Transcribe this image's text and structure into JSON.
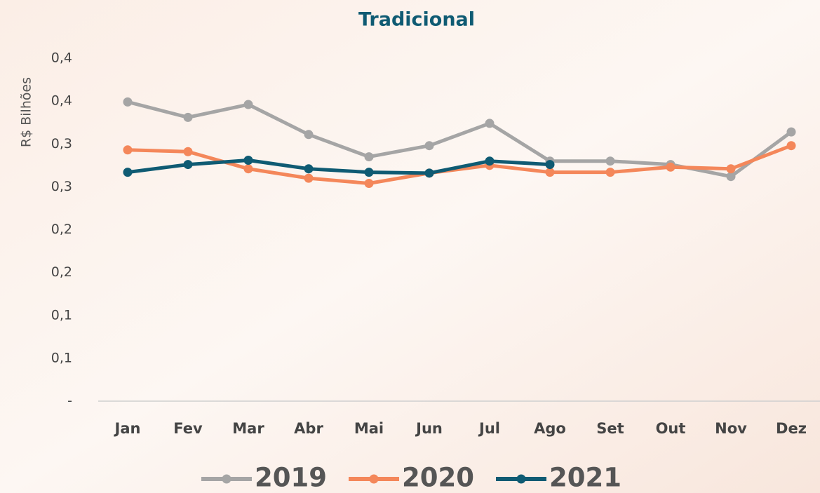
{
  "chart_data": {
    "type": "line",
    "title": "Tradicional",
    "y_label": "R$ Bilhões",
    "categories": [
      "Jan",
      "Fev",
      "Mar",
      "Abr",
      "Mai",
      "Jun",
      "Jul",
      "Ago",
      "Set",
      "Out",
      "Nov",
      "Dez"
    ],
    "series": [
      {
        "name": "2019",
        "color": "#a5a5a5",
        "values": [
          0.349,
          0.331,
          0.346,
          0.311,
          0.285,
          0.298,
          0.324,
          0.28,
          0.28,
          0.276,
          0.262,
          0.314
        ]
      },
      {
        "name": "2020",
        "color": "#f4875a",
        "values": [
          0.293,
          0.291,
          0.271,
          0.26,
          0.254,
          0.266,
          0.275,
          0.267,
          0.267,
          0.273,
          0.271,
          0.298
        ]
      },
      {
        "name": "2021",
        "color": "#0f5b73",
        "values": [
          0.267,
          0.276,
          0.281,
          0.271,
          0.267,
          0.266,
          0.28,
          0.276,
          null,
          null,
          null,
          null
        ]
      }
    ],
    "ylim": [
      0,
      0.4
    ],
    "yticks": [
      {
        "value": 0,
        "label": "-"
      },
      {
        "value": 0.05,
        "label": "0,1"
      },
      {
        "value": 0.1,
        "label": "0,1"
      },
      {
        "value": 0.15,
        "label": "0,2"
      },
      {
        "value": 0.2,
        "label": "0,2"
      },
      {
        "value": 0.25,
        "label": "0,3"
      },
      {
        "value": 0.3,
        "label": "0,3"
      },
      {
        "value": 0.35,
        "label": "0,4"
      },
      {
        "value": 0.4,
        "label": "0,4"
      }
    ]
  }
}
